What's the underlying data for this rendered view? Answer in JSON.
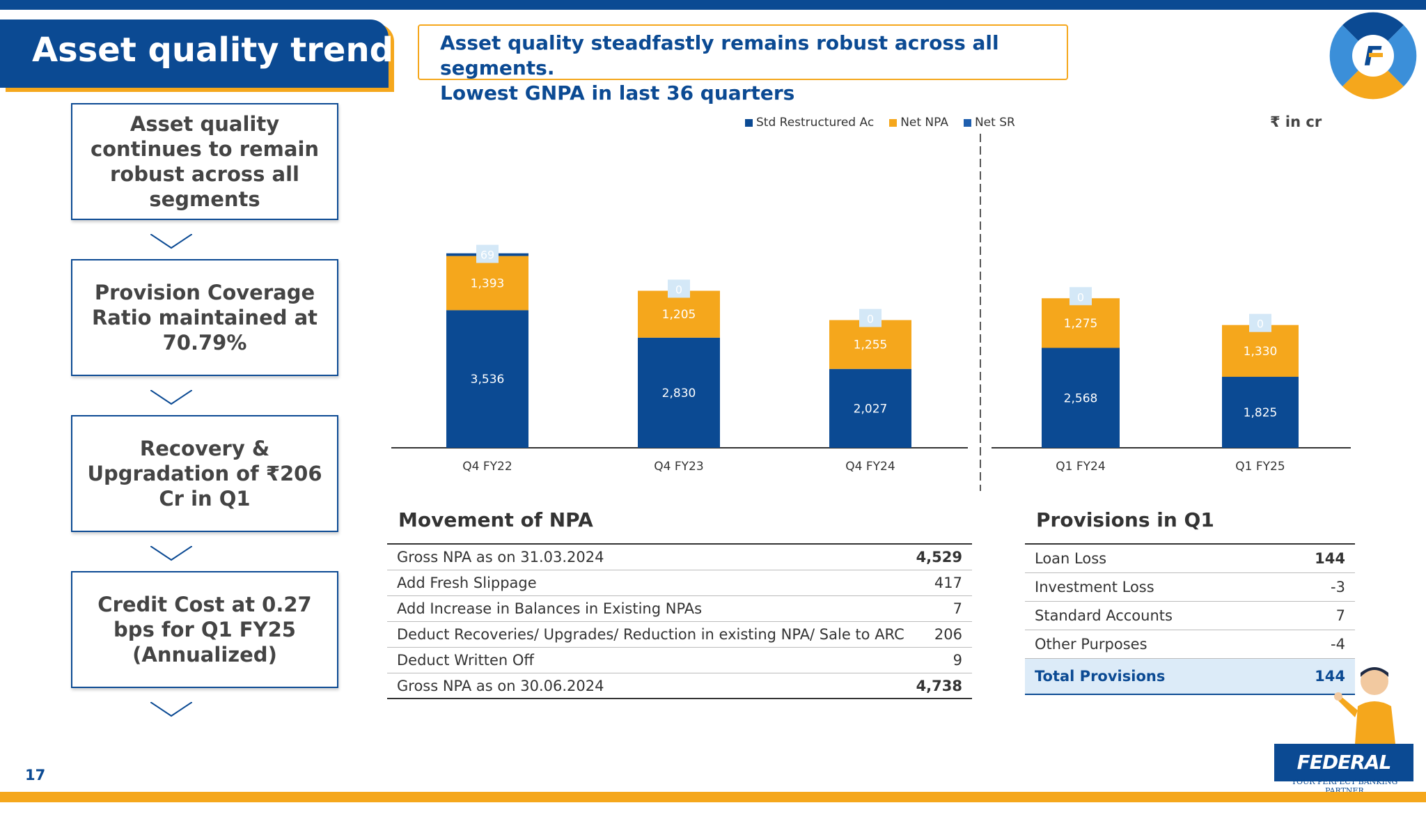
{
  "page": {
    "title": "Asset quality trends",
    "headline": [
      "Asset quality steadfastly remains robust across all segments.",
      "Lowest GNPA in last 36 quarters"
    ],
    "page_number": "17"
  },
  "callouts": [
    "Asset quality continues to remain robust across all segments",
    "Provision Coverage Ratio maintained at 70.79%",
    "Recovery & Upgradation of ₹206 Cr in Q1",
    "Credit Cost at 0.27 bps for Q1 FY25 (Annualized)"
  ],
  "unit_label": "₹ in cr",
  "chart_data": {
    "type": "bar",
    "stacked": true,
    "categories": [
      "Q4 FY22",
      "Q4 FY23",
      "Q4 FY24",
      "Q1 FY24",
      "Q1 FY25"
    ],
    "series": [
      {
        "name": "Net SR",
        "color": "#0b4a93",
        "values": [
          3536,
          2830,
          2027,
          2568,
          1825
        ]
      },
      {
        "name": "Net NPA",
        "color": "#f5a71c",
        "values": [
          1393,
          1205,
          1255,
          1275,
          1330
        ]
      },
      {
        "name": "Std Restructured Ac",
        "color": "#0b4a93",
        "values": [
          69,
          0,
          0,
          0,
          0
        ]
      }
    ],
    "legend_order": [
      "Std Restructured Ac",
      "Net NPA",
      "Net SR"
    ],
    "legend_position": "top",
    "grid": false
  },
  "npa_movement": {
    "title": "Movement of NPA",
    "rows": [
      {
        "label": "Gross NPA as on 31.03.2024",
        "value": "4,529",
        "bold": true
      },
      {
        "label": "Add Fresh Slippage",
        "value": "417",
        "bold": false
      },
      {
        "label": "Add Increase in Balances in Existing NPAs",
        "value": "7",
        "bold": false
      },
      {
        "label": "Deduct Recoveries/ Upgrades/ Reduction in existing NPA/ Sale to ARC",
        "value": "206",
        "bold": false
      },
      {
        "label": "Deduct Written Off",
        "value": "9",
        "bold": false
      },
      {
        "label": "Gross NPA as on 30.06.2024",
        "value": "4,738",
        "bold": true
      }
    ]
  },
  "provisions": {
    "title": "Provisions in Q1",
    "rows": [
      {
        "label": "Loan Loss",
        "value": "144"
      },
      {
        "label": "Investment Loss",
        "value": "-3"
      },
      {
        "label": "Standard Accounts",
        "value": "7"
      },
      {
        "label": "Other Purposes",
        "value": "-4"
      }
    ],
    "total": {
      "label": "Total Provisions",
      "value": "144"
    }
  },
  "brand": {
    "name": "FEDERAL BANK",
    "tagline": "YOUR PERFECT BANKING PARTNER",
    "primary": "#0b4a93",
    "accent": "#f5a71c"
  }
}
